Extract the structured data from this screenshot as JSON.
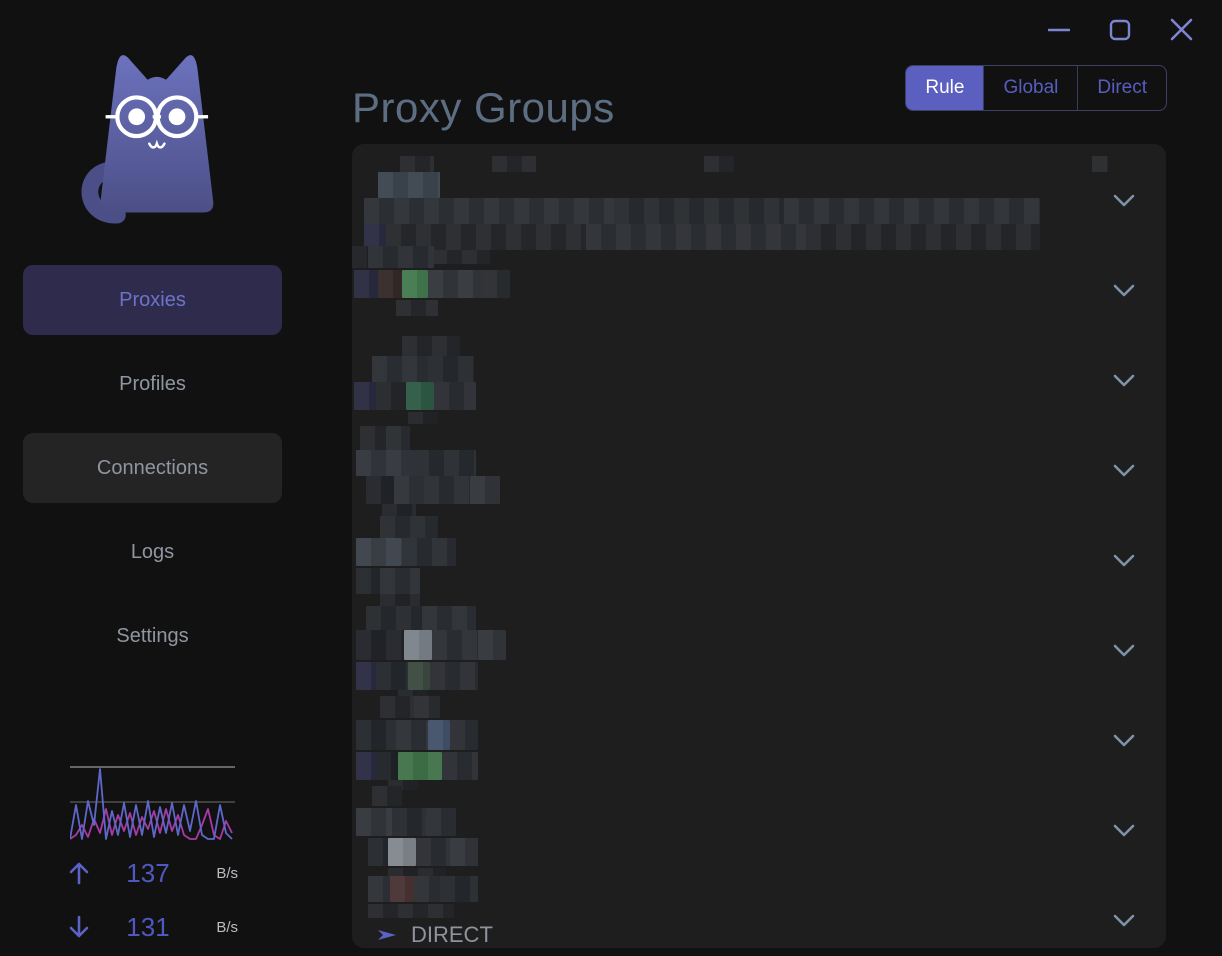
{
  "header": {
    "title": "Proxy Groups",
    "modes": [
      {
        "label": "Rule",
        "selected": true
      },
      {
        "label": "Global",
        "selected": false
      },
      {
        "label": "Direct",
        "selected": false
      }
    ]
  },
  "sidebar": {
    "items": [
      {
        "label": "Proxies",
        "state": "active"
      },
      {
        "label": "Profiles",
        "state": "normal"
      },
      {
        "label": "Connections",
        "state": "hover"
      },
      {
        "label": "Logs",
        "state": "normal"
      },
      {
        "label": "Settings",
        "state": "normal"
      }
    ],
    "traffic": {
      "up": {
        "value": "137",
        "unit": "B/s"
      },
      "down": {
        "value": "131",
        "unit": "B/s"
      },
      "graph": {
        "x_step": 6,
        "up_y": [
          76,
          42,
          76,
          38,
          62,
          6,
          76,
          48,
          72,
          40,
          74,
          42,
          72,
          38,
          74,
          44,
          70,
          40,
          72,
          42,
          68,
          38,
          72,
          76,
          76,
          42,
          70,
          76
        ],
        "down_y": [
          76,
          72,
          62,
          74,
          56,
          70,
          46,
          72,
          52,
          68,
          50,
          72,
          54,
          66,
          48,
          70,
          46,
          68,
          52,
          72,
          76,
          76,
          62,
          46,
          72,
          76,
          58,
          70
        ]
      }
    }
  },
  "groups": {
    "rows": [
      {
        "blocks": [
          [
            48,
            0,
            34,
            16,
            "#26282c"
          ],
          [
            140,
            0,
            44,
            16,
            "#26282c"
          ],
          [
            352,
            0,
            30,
            16,
            "#26282c"
          ],
          [
            740,
            0,
            16,
            16,
            "#28292d"
          ],
          [
            26,
            16,
            62,
            26,
            "#3d4650"
          ],
          [
            12,
            42,
            250,
            26,
            "#2e3136"
          ],
          [
            262,
            42,
            170,
            26,
            "#292c30"
          ],
          [
            432,
            42,
            256,
            26,
            "#2c2f34"
          ],
          [
            12,
            68,
            22,
            26,
            "#2b2b42"
          ],
          [
            34,
            68,
            200,
            26,
            "#27292d"
          ],
          [
            234,
            68,
            220,
            26,
            "#2d3035"
          ],
          [
            454,
            68,
            234,
            26,
            "#26282c"
          ],
          [
            80,
            94,
            58,
            14,
            "#26282c"
          ]
        ]
      },
      {
        "blocks": [
          [
            0,
            0,
            16,
            22,
            "#1f2124"
          ],
          [
            16,
            0,
            66,
            22,
            "#2a2e33"
          ],
          [
            2,
            24,
            24,
            28,
            "#2b2b40"
          ],
          [
            26,
            24,
            24,
            28,
            "#352b28"
          ],
          [
            50,
            24,
            26,
            28,
            "#447a50"
          ],
          [
            76,
            24,
            54,
            28,
            "#34383d"
          ],
          [
            130,
            24,
            28,
            28,
            "#2b2e32"
          ],
          [
            44,
            54,
            42,
            16,
            "#27292d"
          ]
        ]
      },
      {
        "blocks": [
          [
            50,
            0,
            58,
            20,
            "#26282c"
          ],
          [
            20,
            20,
            56,
            26,
            "#2c3035"
          ],
          [
            76,
            20,
            46,
            26,
            "#272a2e"
          ],
          [
            2,
            46,
            22,
            28,
            "#2b2b40"
          ],
          [
            24,
            46,
            30,
            28,
            "#25272b"
          ],
          [
            54,
            46,
            28,
            28,
            "#2e5b46"
          ],
          [
            82,
            46,
            42,
            28,
            "#2b2e33"
          ],
          [
            56,
            76,
            30,
            12,
            "#232528"
          ]
        ]
      },
      {
        "blocks": [
          [
            8,
            0,
            26,
            24,
            "#26282c"
          ],
          [
            34,
            0,
            24,
            24,
            "#2a2d31"
          ],
          [
            4,
            24,
            58,
            26,
            "#33373d"
          ],
          [
            62,
            24,
            62,
            26,
            "#282b2f"
          ],
          [
            14,
            50,
            28,
            28,
            "#23252a"
          ],
          [
            42,
            50,
            30,
            28,
            "#2f3338"
          ],
          [
            72,
            50,
            46,
            28,
            "#2a2d32"
          ],
          [
            118,
            50,
            30,
            28,
            "#33363b"
          ],
          [
            30,
            78,
            34,
            12,
            "#232528"
          ]
        ]
      },
      {
        "blocks": [
          [
            28,
            0,
            58,
            22,
            "#292c30"
          ],
          [
            4,
            22,
            46,
            28,
            "#3c4249"
          ],
          [
            50,
            22,
            54,
            28,
            "#2a2d32"
          ],
          [
            4,
            52,
            24,
            26,
            "#25282c"
          ],
          [
            28,
            52,
            40,
            26,
            "#2c2f34"
          ],
          [
            28,
            78,
            40,
            12,
            "#232528"
          ]
        ]
      },
      {
        "blocks": [
          [
            14,
            0,
            56,
            24,
            "#272a2e"
          ],
          [
            70,
            0,
            54,
            24,
            "#2c2f34"
          ],
          [
            4,
            24,
            48,
            30,
            "#23252a"
          ],
          [
            52,
            24,
            28,
            30,
            "#7d838b"
          ],
          [
            80,
            24,
            46,
            30,
            "#2c2f34"
          ],
          [
            126,
            24,
            28,
            30,
            "#33373c"
          ],
          [
            4,
            56,
            20,
            28,
            "#2b2b42"
          ],
          [
            24,
            56,
            32,
            28,
            "#25282c"
          ],
          [
            56,
            56,
            22,
            28,
            "#3c4a40"
          ],
          [
            78,
            56,
            48,
            28,
            "#2b2e33"
          ],
          [
            46,
            84,
            30,
            10,
            "#232528"
          ]
        ]
      },
      {
        "blocks": [
          [
            28,
            0,
            34,
            22,
            "#26282c"
          ],
          [
            62,
            0,
            26,
            22,
            "#2b2e32"
          ],
          [
            4,
            24,
            40,
            30,
            "#25282d"
          ],
          [
            44,
            24,
            32,
            30,
            "#2d3136"
          ],
          [
            76,
            24,
            22,
            30,
            "#43536a"
          ],
          [
            98,
            24,
            28,
            30,
            "#2b2e33"
          ],
          [
            4,
            56,
            20,
            28,
            "#2b2b42"
          ],
          [
            24,
            56,
            22,
            28,
            "#202327"
          ],
          [
            46,
            56,
            44,
            28,
            "#417449"
          ],
          [
            90,
            56,
            36,
            28,
            "#2b2e33"
          ],
          [
            36,
            84,
            30,
            10,
            "#232528"
          ]
        ]
      },
      {
        "blocks": [
          [
            20,
            0,
            30,
            20,
            "#26282c"
          ],
          [
            4,
            22,
            36,
            28,
            "#33373c"
          ],
          [
            40,
            22,
            34,
            28,
            "#272a2f"
          ],
          [
            74,
            22,
            30,
            28,
            "#2c3035"
          ],
          [
            16,
            52,
            20,
            28,
            "#25282c"
          ],
          [
            36,
            52,
            28,
            28,
            "#83888f"
          ],
          [
            64,
            52,
            34,
            28,
            "#2b2e33"
          ],
          [
            98,
            52,
            28,
            28,
            "#33363b"
          ],
          [
            36,
            82,
            58,
            10,
            "#232528"
          ]
        ]
      },
      {
        "blocks": [
          [
            16,
            0,
            22,
            26,
            "#2e3136"
          ],
          [
            38,
            0,
            24,
            26,
            "#4a3335"
          ],
          [
            62,
            0,
            26,
            26,
            "#2c2f34"
          ],
          [
            88,
            0,
            38,
            26,
            "#26292d"
          ],
          [
            16,
            28,
            86,
            14,
            "#26282c"
          ]
        ],
        "current": "DIRECT"
      }
    ]
  },
  "colors": {
    "background": "#111112",
    "card": "#1e1e1f",
    "accent": "#5a5fc0",
    "title": "#5e6e82",
    "sidebar_text": "#9096a0",
    "sidebar_active_bg": "#2e2b4c",
    "sidebar_active_text": "#6d73c8",
    "window_control": "#7f84d2",
    "chevron": "#7e93a8",
    "up_line": "#5f68c8",
    "down_line": "#a83aa4",
    "speed_value": "#5058c0",
    "speed_unit": "#b9bcc0",
    "direct_arrow": "#5c63c8",
    "gridline_top": "#9a9a9a",
    "gridline_mid": "#6f6f6f"
  }
}
